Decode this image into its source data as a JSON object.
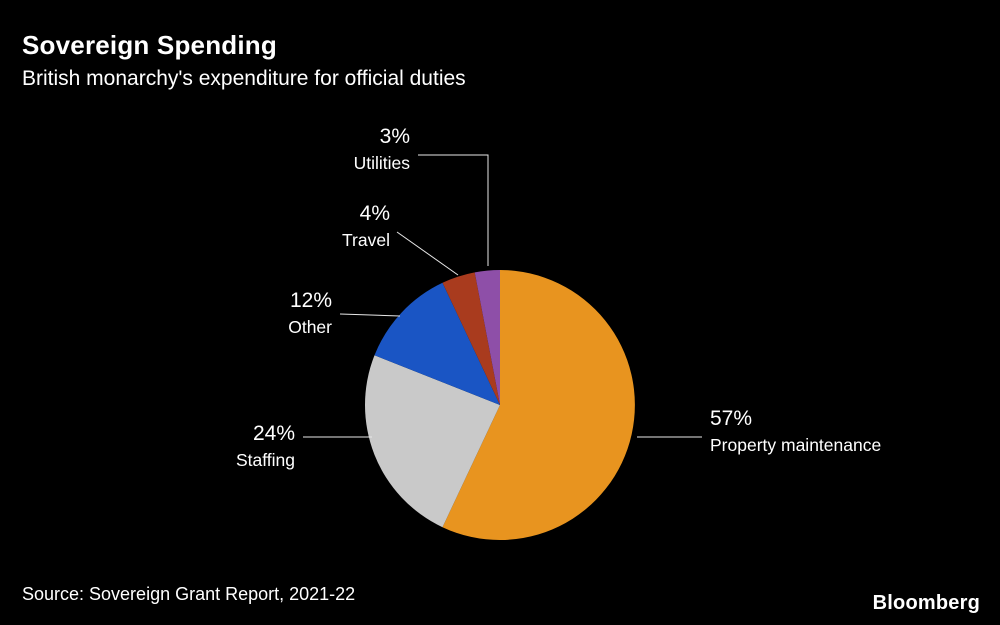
{
  "header": {
    "title": "Sovereign Spending",
    "subtitle": "British monarchy's expenditure for official duties"
  },
  "chart_data": {
    "type": "pie",
    "title": "Sovereign Spending",
    "subtitle": "British monarchy's expenditure for official duties",
    "unit": "%",
    "start_angle_deg": 0,
    "direction": "clockwise",
    "legend": "none",
    "background": "#000000",
    "text_color": "#ffffff",
    "leader_line_color": "#e8e8e8",
    "slices": [
      {
        "label": "Property maintenance",
        "value": 57,
        "color": "#e8941f"
      },
      {
        "label": "Staffing",
        "value": 24,
        "color": "#c9c9c9"
      },
      {
        "label": "Other",
        "value": 12,
        "color": "#1a55c4"
      },
      {
        "label": "Travel",
        "value": 4,
        "color": "#a93b1e"
      },
      {
        "label": "Utilities",
        "value": 3,
        "color": "#8e4fa8"
      }
    ]
  },
  "footer": {
    "source": "Source: Sovereign Grant Report, 2021-22"
  },
  "branding": {
    "logo": "Bloomberg"
  }
}
